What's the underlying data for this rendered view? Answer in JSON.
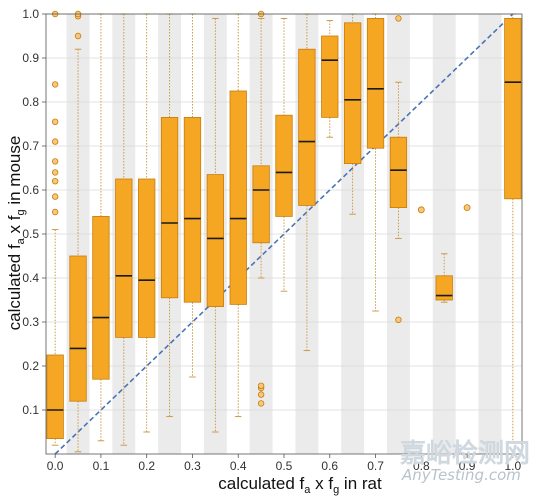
{
  "chart_data": {
    "type": "boxplot",
    "xlabel": {
      "prefix": "calculated f",
      "sub1": "a",
      "mid": " x f",
      "sub2": "g",
      "suffix": " in rat"
    },
    "ylabel": {
      "prefix": "calculated f",
      "sub1": "a",
      "mid": " x f",
      "sub2": "g",
      "suffix": " in mouse"
    },
    "xlim": [
      -0.02,
      1.02
    ],
    "ylim": [
      0.0,
      1.0
    ],
    "x_ticks": [
      0.0,
      0.1,
      0.2,
      0.3,
      0.4,
      0.5,
      0.6,
      0.7,
      0.8,
      0.9,
      1.0
    ],
    "x_tick_labels": [
      "0.0",
      "0.1",
      "0.2",
      "0.3",
      "0.4",
      "0.5",
      "0.6",
      "0.7",
      "0.8",
      "0.9",
      "1.0"
    ],
    "y_ticks": [
      0.1,
      0.2,
      0.3,
      0.4,
      0.5,
      0.6,
      0.7,
      0.8,
      0.9,
      1.0
    ],
    "y_tick_labels": [
      "0.1",
      "0.2",
      "0.3",
      "0.4",
      "0.5",
      "0.6",
      "0.7",
      "0.8",
      "0.9",
      "1.0"
    ],
    "grid": true,
    "band_width": 0.05,
    "box_color": "#f5a623",
    "box_edge_color": "#c77d0a",
    "whisker_color": "#c8913a",
    "band_color": "#ebebeb",
    "diagonal_color": "#4a74b4",
    "boxes": [
      {
        "x": 0.0,
        "min": 0.02,
        "q1": 0.035,
        "median": 0.1,
        "q3": 0.225,
        "max": 0.51,
        "outliers": [
          0.55,
          0.585,
          0.62,
          0.64,
          0.665,
          0.71,
          0.755,
          0.84,
          1.0
        ]
      },
      {
        "x": 0.05,
        "min": 0.005,
        "q1": 0.12,
        "median": 0.24,
        "q3": 0.45,
        "max": 0.92,
        "outliers": [
          0.95,
          0.995,
          1.0
        ]
      },
      {
        "x": 0.1,
        "min": 0.03,
        "q1": 0.17,
        "median": 0.31,
        "q3": 0.54,
        "max": 1.0,
        "outliers": []
      },
      {
        "x": 0.15,
        "min": 0.02,
        "q1": 0.265,
        "median": 0.405,
        "q3": 0.625,
        "max": 1.0,
        "outliers": []
      },
      {
        "x": 0.2,
        "min": 0.05,
        "q1": 0.265,
        "median": 0.395,
        "q3": 0.625,
        "max": 1.0,
        "outliers": []
      },
      {
        "x": 0.25,
        "min": 0.085,
        "q1": 0.355,
        "median": 0.525,
        "q3": 0.765,
        "max": 1.0,
        "outliers": []
      },
      {
        "x": 0.3,
        "min": 0.175,
        "q1": 0.345,
        "median": 0.535,
        "q3": 0.765,
        "max": 1.0,
        "outliers": []
      },
      {
        "x": 0.35,
        "min": 0.05,
        "q1": 0.335,
        "median": 0.49,
        "q3": 0.635,
        "max": 0.99,
        "outliers": []
      },
      {
        "x": 0.4,
        "min": 0.085,
        "q1": 0.34,
        "median": 0.535,
        "q3": 0.825,
        "max": 1.0,
        "outliers": []
      },
      {
        "x": 0.45,
        "min": 0.4,
        "q1": 0.48,
        "median": 0.6,
        "q3": 0.655,
        "max": 0.99,
        "outliers": [
          0.115,
          0.135,
          0.15,
          0.155,
          1.0
        ]
      },
      {
        "x": 0.5,
        "min": 0.37,
        "q1": 0.54,
        "median": 0.64,
        "q3": 0.77,
        "max": 0.99,
        "outliers": []
      },
      {
        "x": 0.55,
        "min": 0.235,
        "q1": 0.565,
        "median": 0.71,
        "q3": 0.92,
        "max": 1.0,
        "outliers": []
      },
      {
        "x": 0.6,
        "min": 0.72,
        "q1": 0.765,
        "median": 0.895,
        "q3": 0.95,
        "max": 0.985,
        "outliers": []
      },
      {
        "x": 0.65,
        "min": 0.545,
        "q1": 0.66,
        "median": 0.805,
        "q3": 0.98,
        "max": 1.0,
        "outliers": []
      },
      {
        "x": 0.7,
        "min": 0.325,
        "q1": 0.695,
        "median": 0.83,
        "q3": 0.99,
        "max": 1.0,
        "outliers": []
      },
      {
        "x": 0.75,
        "min": 0.49,
        "q1": 0.56,
        "median": 0.645,
        "q3": 0.72,
        "max": 0.845,
        "outliers": [
          0.305,
          0.99
        ]
      },
      {
        "x": 0.8,
        "min": 0.555,
        "q1": 0.555,
        "median": 0.555,
        "q3": 0.555,
        "max": 0.555,
        "outliers": [],
        "point_only": true
      },
      {
        "x": 0.85,
        "min": 0.345,
        "q1": 0.35,
        "median": 0.36,
        "q3": 0.405,
        "max": 0.455,
        "outliers": []
      },
      {
        "x": 0.9,
        "min": 0.56,
        "q1": 0.56,
        "median": 0.56,
        "q3": 0.56,
        "max": 0.56,
        "outliers": [],
        "point_only": true
      },
      {
        "x": 1.0,
        "min": 0.025,
        "q1": 0.58,
        "median": 0.845,
        "q3": 0.99,
        "max": 1.0,
        "outliers": []
      }
    ]
  },
  "watermark": {
    "line1": "嘉峪检测网",
    "line2": "AnyTesting.com"
  }
}
